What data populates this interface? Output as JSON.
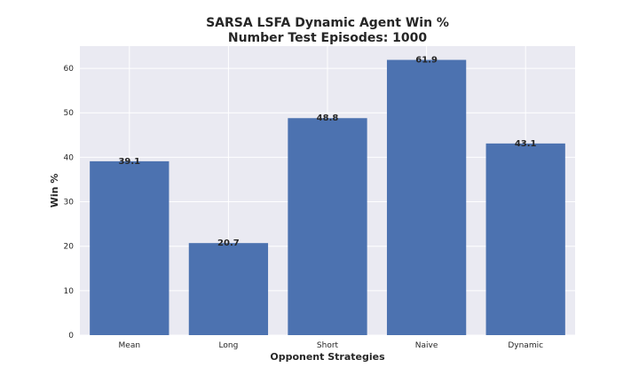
{
  "chart_data": {
    "type": "bar",
    "title": "SARSA LSFA Dynamic Agent Win %",
    "subtitle": "Number Test Episodes: 1000",
    "xlabel": "Opponent Strategies",
    "ylabel": "Win %",
    "categories": [
      "Mean",
      "Long",
      "Short",
      "Naive",
      "Dynamic"
    ],
    "values": [
      39.1,
      20.7,
      48.8,
      61.9,
      43.1
    ],
    "value_labels": [
      "39.1",
      "20.7",
      "48.8",
      "61.9",
      "43.1"
    ],
    "ylim": [
      0,
      65
    ],
    "yticks": [
      0,
      10,
      20,
      30,
      40,
      50,
      60
    ],
    "grid": true,
    "colors": {
      "bar": "#4c72b0",
      "plot_bg": "#eaeaf2",
      "grid": "#ffffff",
      "text": "#262626"
    }
  }
}
